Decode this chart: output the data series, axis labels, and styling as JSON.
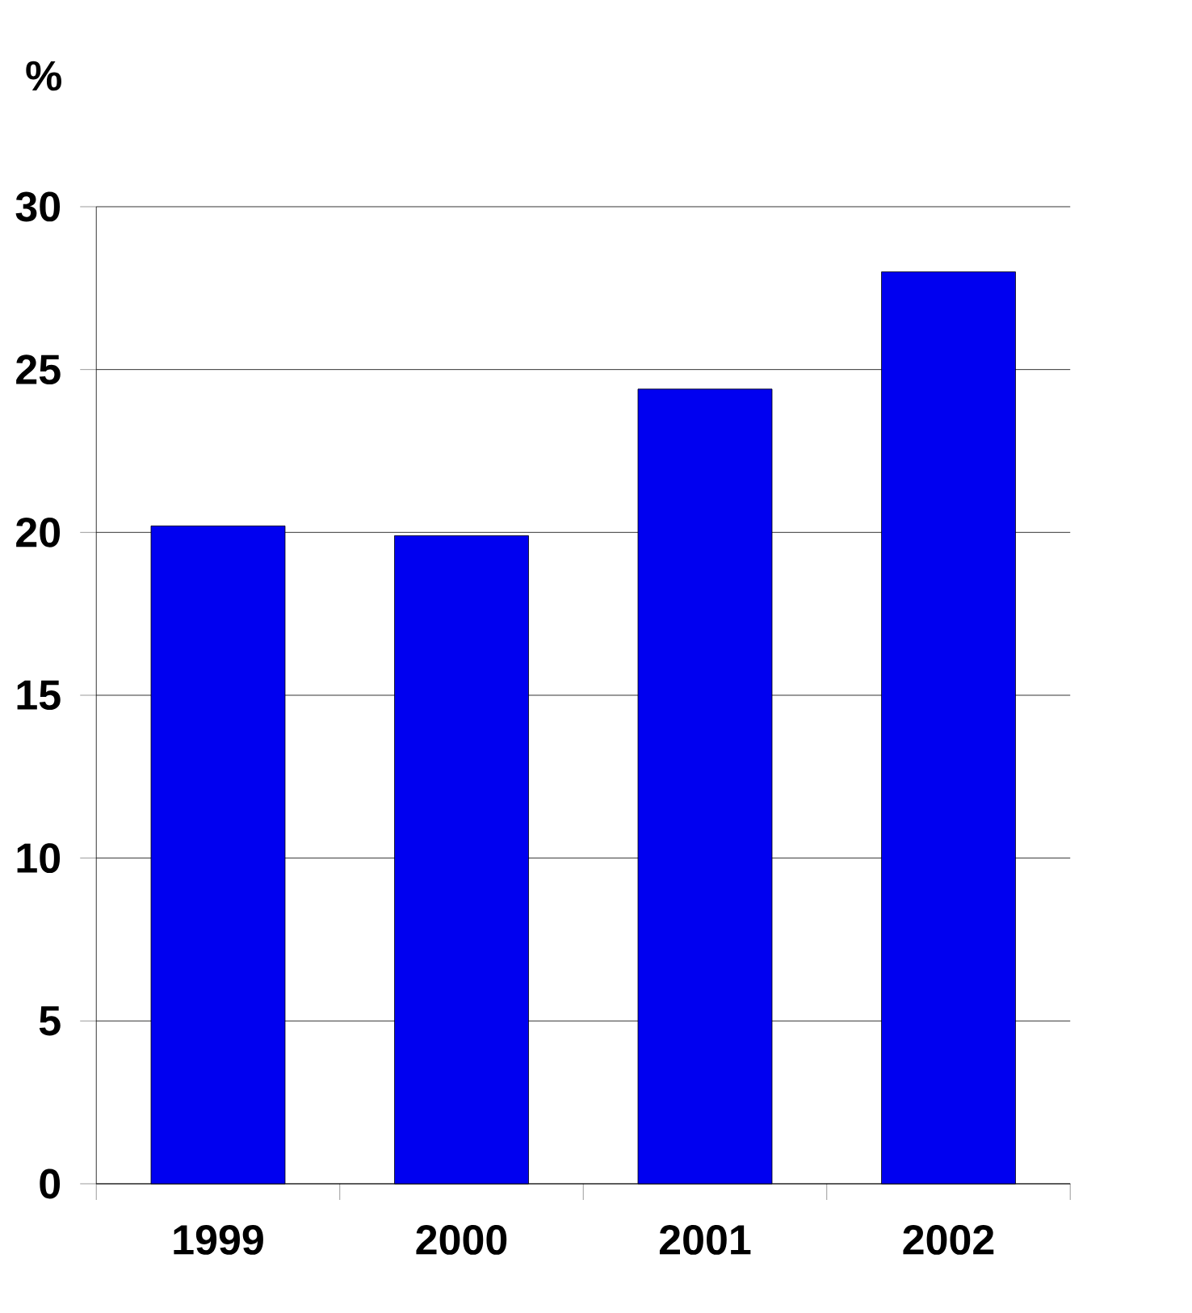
{
  "chart_data": {
    "type": "bar",
    "ylabel": "%",
    "categories": [
      "1999",
      "2000",
      "2001",
      "2002"
    ],
    "values": [
      20.2,
      19.9,
      24.4,
      28.0
    ],
    "color": "#0000f0",
    "ylim": [
      0,
      30
    ],
    "yticks": [
      0,
      5,
      10,
      15,
      20,
      25,
      30
    ],
    "grid": "y"
  }
}
